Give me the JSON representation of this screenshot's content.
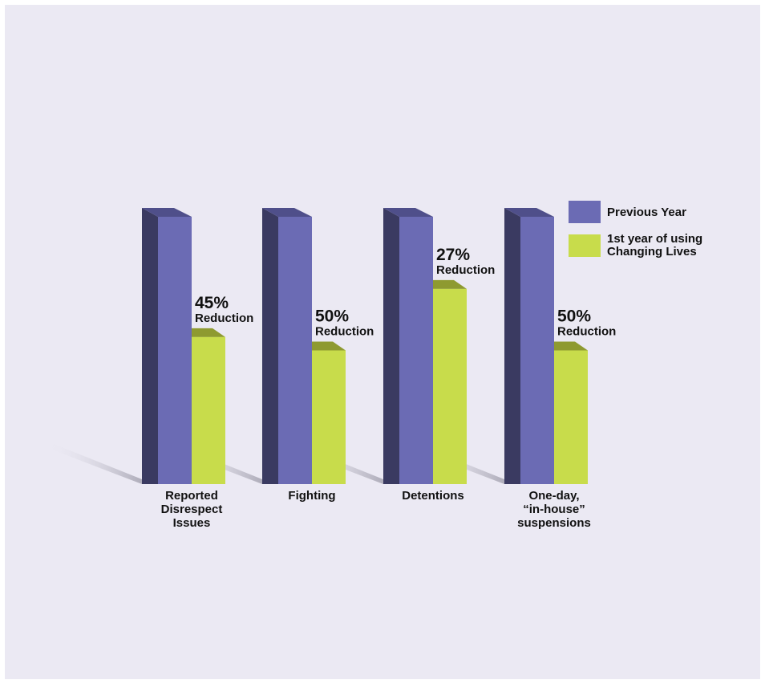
{
  "chart_data": {
    "type": "bar",
    "title": "",
    "xlabel": "",
    "ylabel": "",
    "ylim": [
      0,
      100
    ],
    "categories": [
      [
        "Reported",
        "Disrespect",
        "Issues"
      ],
      [
        "Fighting"
      ],
      [
        "Detentions"
      ],
      [
        "One-day,",
        "“in-house”",
        "suspensions"
      ]
    ],
    "series": [
      {
        "name": "Previous Year",
        "values": [
          100,
          100,
          100,
          100
        ]
      },
      {
        "name": [
          "1st year of using",
          "Changing Lives"
        ],
        "values": [
          55,
          50,
          73,
          50
        ]
      }
    ],
    "annotations": [
      {
        "percent": "45%",
        "text": "Reduction"
      },
      {
        "percent": "50%",
        "text": "Reduction"
      },
      {
        "percent": "27%",
        "text": "Reduction"
      },
      {
        "percent": "50%",
        "text": "Reduction"
      }
    ],
    "colors": {
      "previous_front": "#6b6bb4",
      "previous_side": "#3a3a61",
      "previous_top": "#4f4f8a",
      "current_front": "#c8dc4b",
      "current_top": "#8e9a30",
      "background": "#ebe9f3"
    },
    "legend_placement": "top-right",
    "grid": false
  }
}
